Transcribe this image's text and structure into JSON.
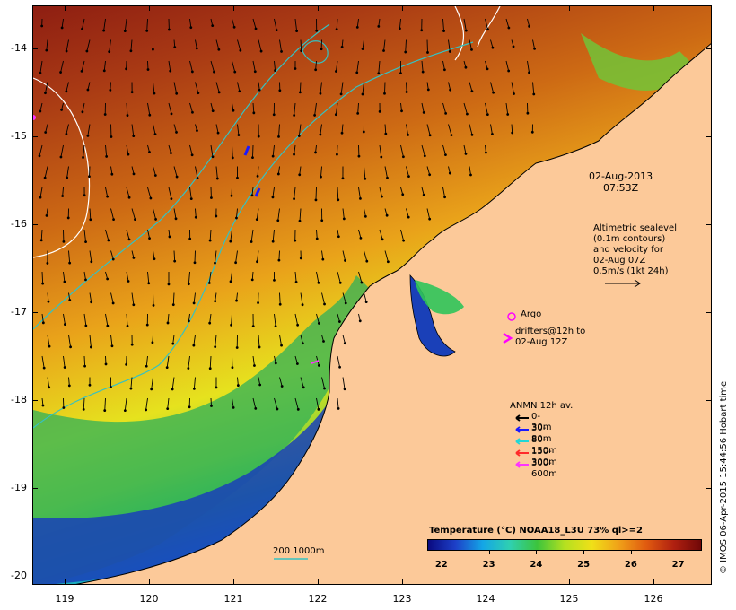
{
  "map": {
    "y_axis": {
      "unit": "degrees latitude",
      "ticks": [
        "-14",
        "-15",
        "-16",
        "-17",
        "-18",
        "-19",
        "-20"
      ]
    },
    "x_axis": {
      "unit": "degrees longitude",
      "ticks": [
        "119",
        "120",
        "121",
        "122",
        "123",
        "124",
        "125",
        "126"
      ]
    },
    "extent": {
      "lon": [
        118.7,
        126.7
      ],
      "lat": [
        -20.06,
        -13.6
      ]
    },
    "datetime": {
      "date": "02-Aug-2013",
      "time": "07:53Z"
    },
    "altimetry_note": [
      "Altimetric sealevel",
      "(0.1m contours)",
      "and velocity for",
      "02-Aug 07Z",
      "0.5m/s (1kt 24h)"
    ],
    "argo_label": "Argo",
    "drifters_label": [
      "drifters@12h to",
      "02-Aug 12Z"
    ],
    "anmn_legend": {
      "title": "ANMN 12h av.",
      "rows": [
        {
          "label": "0-30m",
          "color": "#000000"
        },
        {
          "label": "30-80m",
          "color": "#1a1aff"
        },
        {
          "label": "80-150m",
          "color": "#22d6d6"
        },
        {
          "label": "150-300m",
          "color": "#ff2a2a"
        },
        {
          "label": "300-600m",
          "color": "#ff33ff"
        }
      ]
    },
    "colorbar": {
      "title": "Temperature (°C) NOAA18_L3U 73% ql>=2",
      "ticks": [
        "22",
        "23",
        "24",
        "25",
        "26",
        "27"
      ],
      "range": [
        21.7,
        27.5
      ]
    },
    "scale_label": "200  1000m",
    "credit": "© IMOS 06-Apr-2015 15:44:56 Hobart time",
    "colors": {
      "land": "#fcc999",
      "ocean_warm": "#a83a14",
      "ocean_cool": "#1d2f9a",
      "isobath": "#35c2c2",
      "sla_contour": "#ffffff"
    }
  }
}
